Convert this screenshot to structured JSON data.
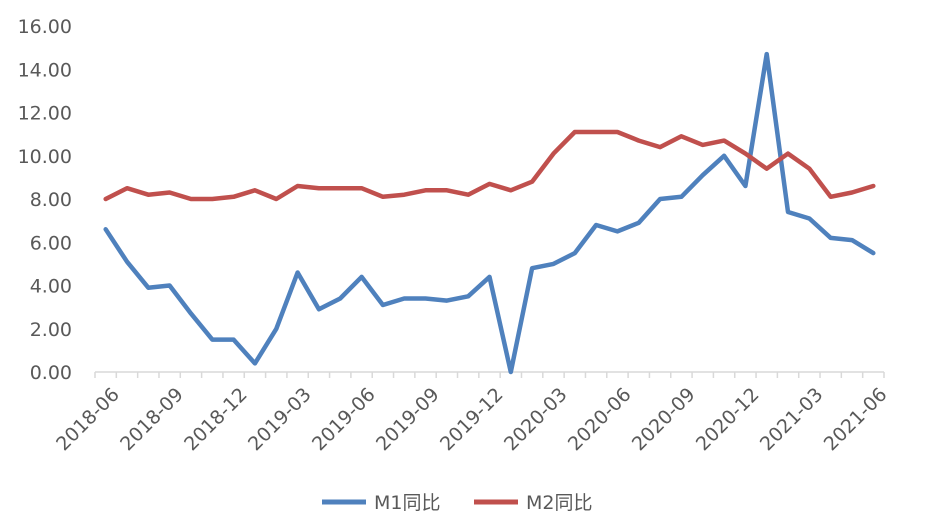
{
  "chart_data": {
    "type": "line",
    "title": "",
    "xlabel": "",
    "ylabel": "",
    "ylim": [
      0,
      16
    ],
    "yticks": [
      "0.00",
      "2.00",
      "4.00",
      "6.00",
      "8.00",
      "10.00",
      "12.00",
      "14.00",
      "16.00"
    ],
    "xticks": [
      "2018-06",
      "2018-09",
      "2018-12",
      "2019-03",
      "2019-06",
      "2019-09",
      "2019-12",
      "2020-03",
      "2020-06",
      "2020-09",
      "2020-12",
      "2021-03",
      "2021-06"
    ],
    "x": [
      "2018-06",
      "2018-07",
      "2018-08",
      "2018-09",
      "2018-10",
      "2018-11",
      "2018-12",
      "2019-01",
      "2019-02",
      "2019-03",
      "2019-04",
      "2019-05",
      "2019-06",
      "2019-07",
      "2019-08",
      "2019-09",
      "2019-10",
      "2019-11",
      "2019-12",
      "2020-01",
      "2020-02",
      "2020-03",
      "2020-04",
      "2020-05",
      "2020-06",
      "2020-07",
      "2020-08",
      "2020-09",
      "2020-10",
      "2020-11",
      "2020-12",
      "2021-01",
      "2021-02",
      "2021-03",
      "2021-04",
      "2021-05",
      "2021-06"
    ],
    "series": [
      {
        "name": "M1同比",
        "color": "#4f81bd",
        "values": [
          6.6,
          5.1,
          3.9,
          4.0,
          2.7,
          1.5,
          1.5,
          0.4,
          2.0,
          4.6,
          2.9,
          3.4,
          4.4,
          3.1,
          3.4,
          3.4,
          3.3,
          3.5,
          4.4,
          0.0,
          4.8,
          5.0,
          5.5,
          6.8,
          6.5,
          6.9,
          8.0,
          8.1,
          9.1,
          10.0,
          8.6,
          14.7,
          7.4,
          7.1,
          6.2,
          6.1,
          5.5
        ]
      },
      {
        "name": "M2同比",
        "color": "#c0504d",
        "values": [
          8.0,
          8.5,
          8.2,
          8.3,
          8.0,
          8.0,
          8.1,
          8.4,
          8.0,
          8.6,
          8.5,
          8.5,
          8.5,
          8.1,
          8.2,
          8.4,
          8.4,
          8.2,
          8.7,
          8.4,
          8.8,
          10.1,
          11.1,
          11.1,
          11.1,
          10.7,
          10.4,
          10.9,
          10.5,
          10.7,
          10.1,
          9.4,
          10.1,
          9.4,
          8.1,
          8.3,
          8.6
        ]
      }
    ],
    "grid": false,
    "legend": "bottom"
  }
}
